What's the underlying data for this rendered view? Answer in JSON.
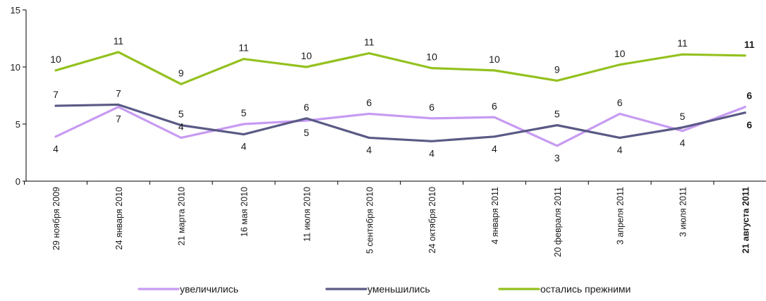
{
  "chart_data": {
    "type": "line",
    "title": "",
    "xlabel": "",
    "ylabel": "",
    "ylim": [
      0,
      15
    ],
    "yticks": [
      0,
      5,
      10,
      15
    ],
    "grid": false,
    "legend_position": "bottom",
    "categories": [
      "29 ноября 2009",
      "24 января 2010",
      "21 марта 2010",
      "16 мая 2010",
      "11 июля 2010",
      "5 сентября 2010",
      "24 октября 2010",
      "4 января 2011",
      "20 февраля 2011",
      "3 апреля 2011",
      "3 июля 2011",
      "21 августа 2011"
    ],
    "bold_category_index": 11,
    "series": [
      {
        "name": "увеличились",
        "color": "#c79bf2",
        "values": [
          3.9,
          6.5,
          3.8,
          5.0,
          5.3,
          5.9,
          5.5,
          5.6,
          3.1,
          5.9,
          4.4,
          6.5
        ],
        "labels": [
          "4",
          "7",
          "4",
          "5",
          "5",
          "6",
          "6",
          "6",
          "3",
          "6",
          "4",
          "6"
        ],
        "label_side": [
          "below",
          "below",
          "above",
          "above",
          "below",
          "above",
          "above",
          "above",
          "below",
          "above",
          "below",
          "above"
        ]
      },
      {
        "name": "уменьшились",
        "color": "#5a5a86",
        "values": [
          6.6,
          6.7,
          4.9,
          4.1,
          5.5,
          3.8,
          3.5,
          3.9,
          4.9,
          3.8,
          4.7,
          6.0
        ],
        "labels": [
          "7",
          "7",
          "5",
          "4",
          "6",
          "4",
          "4",
          "4",
          "5",
          "4",
          "5",
          "6"
        ],
        "label_side": [
          "above",
          "above",
          "above",
          "below",
          "above",
          "below",
          "below",
          "below",
          "above",
          "below",
          "above",
          "below"
        ]
      },
      {
        "name": "остались прежними",
        "color": "#94c11f",
        "values": [
          9.7,
          11.3,
          8.5,
          10.7,
          10.0,
          11.2,
          9.9,
          9.7,
          8.8,
          10.2,
          11.1,
          11.0
        ],
        "labels": [
          "10",
          "11",
          "9",
          "11",
          "10",
          "11",
          "10",
          "10",
          "9",
          "10",
          "11",
          "11"
        ],
        "label_side": [
          "above",
          "above",
          "above",
          "above",
          "above",
          "above",
          "above",
          "above",
          "above",
          "above",
          "above",
          "above"
        ]
      }
    ]
  }
}
